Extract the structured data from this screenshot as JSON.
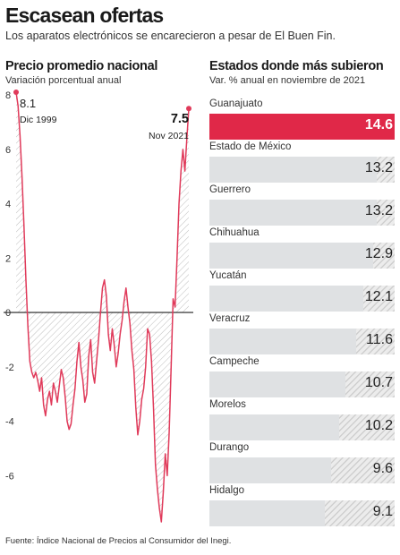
{
  "header": {
    "title": "Escasean ofertas",
    "subtitle": "Los aparatos electrónicos se encarecieron a pesar de El Buen Fin."
  },
  "left_panel": {
    "heading": "Precio promedio nacional",
    "subheading": "Variación porcentual anual",
    "start_value": "8.1",
    "start_date": "Dic 1999",
    "end_value": "7.5",
    "end_date": "Nov 2021"
  },
  "right_panel": {
    "heading": "Estados donde más subieron",
    "subheading": "Var. % anual en noviembre de 2021"
  },
  "source": "Fuente: Índice Nacional de Precios al Consumidor del Inegi.",
  "colors": {
    "accent": "#e02848",
    "line": "#e03a5a",
    "bar_gray": "#dfe1e3"
  },
  "chart_data": [
    {
      "type": "line",
      "title": "Precio promedio nacional",
      "ylabel": "Variación porcentual anual",
      "ylim": [
        -7.8,
        8.2
      ],
      "yticks": [
        8,
        6,
        4,
        2,
        0,
        -2,
        -4,
        -6
      ],
      "ytick_labels": [
        "8",
        "6",
        "4",
        "2",
        "0",
        "-2",
        "-4",
        "-6"
      ],
      "start_label": "Dic 1999",
      "end_label": "Nov 2021",
      "values": [
        8.1,
        7.6,
        6.5,
        5.0,
        3.2,
        1.2,
        -0.5,
        -1.8,
        -2.2,
        -2.4,
        -2.2,
        -2.5,
        -2.9,
        -2.4,
        -3.4,
        -3.8,
        -3.2,
        -2.9,
        -3.4,
        -2.6,
        -2.9,
        -3.3,
        -2.7,
        -2.1,
        -2.4,
        -3.1,
        -4.0,
        -4.3,
        -4.1,
        -3.4,
        -2.8,
        -1.8,
        -1.1,
        -2.0,
        -2.5,
        -3.3,
        -3.0,
        -1.6,
        -1.0,
        -2.2,
        -2.6,
        -1.8,
        -1.0,
        0.0,
        0.9,
        1.2,
        0.6,
        -0.8,
        -1.4,
        -0.6,
        -1.2,
        -2.0,
        -1.5,
        -0.8,
        -0.3,
        0.4,
        0.9,
        0.2,
        -0.4,
        -1.4,
        -2.1,
        -3.5,
        -4.5,
        -4.0,
        -3.2,
        -2.8,
        -2.0,
        -0.6,
        -0.8,
        -1.8,
        -3.5,
        -5.6,
        -6.5,
        -7.2,
        -7.7,
        -6.6,
        -5.2,
        -6.0,
        -4.4,
        -2.0,
        0.5,
        0.2,
        2.0,
        4.0,
        5.2,
        6.0,
        5.2,
        6.4,
        7.5
      ],
      "series": [
        {
          "name": "",
          "color": "#e03a5a"
        }
      ]
    },
    {
      "type": "bar",
      "title": "Estados donde más subieron",
      "subtitle": "Var. % anual en noviembre de 2021",
      "categories": [
        "Guanajuato",
        "Estado de México",
        "Guerrero",
        "Chihuahua",
        "Yucatán",
        "Veracruz",
        "Campeche",
        "Morelos",
        "Durango",
        "Hidalgo"
      ],
      "values": [
        14.6,
        13.2,
        13.2,
        12.9,
        12.1,
        11.6,
        10.7,
        10.2,
        9.6,
        9.1
      ],
      "value_labels": [
        "14.6",
        "13.2",
        "13.2",
        "12.9",
        "12.1",
        "11.6",
        "10.7",
        "10.2",
        "9.6",
        "9.1"
      ],
      "xlim": [
        0,
        14.6
      ],
      "highlight": "Guanajuato"
    }
  ]
}
